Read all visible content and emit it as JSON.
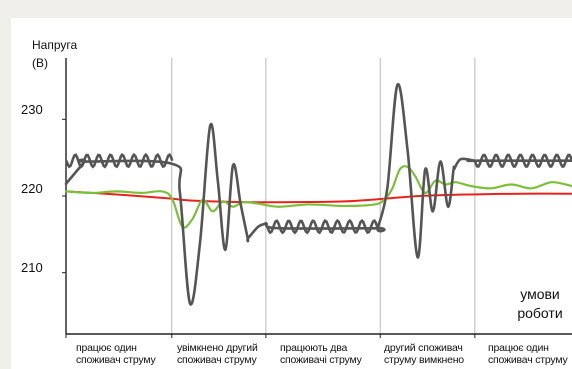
{
  "chart_data": {
    "type": "line",
    "ylabel": "Напруга",
    "yunit": "(В)",
    "ylim": [
      202,
      238
    ],
    "xlim": [
      0,
      100
    ],
    "y_ticks": [
      "230",
      "220",
      "210"
    ],
    "y_tick_values": [
      230,
      220,
      210
    ],
    "phases": [
      {
        "line1": "працює один",
        "line2": "споживач струму",
        "x_start": 0,
        "x_end": 20.9
      },
      {
        "line1": "увімкнено другий",
        "line2": "споживач струму",
        "x_start": 20.9,
        "x_end": 39.5
      },
      {
        "line1": "працюють два",
        "line2": "споживачі струму",
        "x_start": 39.5,
        "x_end": 62.1
      },
      {
        "line1": "другий споживач",
        "line2": "струму вимкнено",
        "x_start": 62.1,
        "x_end": 80.8
      },
      {
        "line1": "працює один",
        "line2": "споживач струму",
        "x_start": 80.8,
        "x_end": 100
      }
    ],
    "annotation": {
      "line1": "умови",
      "line2": "роботи"
    },
    "series": [
      {
        "color": "#e8231c",
        "x": [
          0,
          10,
          20,
          25,
          35,
          45,
          55,
          62,
          70,
          80,
          90,
          100
        ],
        "values": [
          220.6,
          220.2,
          219.7,
          219.4,
          219.2,
          219.2,
          219.3,
          219.6,
          220.0,
          220.2,
          220.3,
          220.3
        ]
      },
      {
        "color": "#7cbf3a",
        "x": [
          0,
          5,
          10,
          15,
          19,
          21,
          23,
          25,
          27,
          29,
          31,
          33,
          35,
          38,
          42,
          48,
          55,
          61,
          63,
          64.5,
          66,
          67.5,
          69,
          71,
          73,
          75,
          77,
          80,
          84,
          88,
          92,
          96,
          100
        ],
        "values": [
          220.6,
          220.4,
          220.6,
          220.4,
          220.6,
          219.6,
          216.0,
          217.0,
          219.5,
          218.0,
          219.3,
          218.6,
          219.2,
          219.0,
          218.6,
          218.9,
          218.7,
          218.9,
          219.6,
          221.0,
          223.5,
          223.8,
          222.6,
          220.4,
          222.0,
          221.5,
          221.8,
          221.3,
          221.0,
          221.5,
          221.0,
          221.8,
          221.3
        ]
      },
      {
        "color": "#555555",
        "x": [
          0,
          3.7,
          3.71,
          21,
          22.5,
          24.5,
          26.5,
          28.5,
          30,
          31.5,
          33,
          34.5,
          35.9,
          36,
          38,
          39.5,
          39.6,
          42,
          61.5,
          61.6,
          63.5,
          65.5,
          67.5,
          69.5,
          71,
          72.5,
          74,
          75.5,
          76.6,
          76.7,
          78,
          80.7,
          80.71,
          100
        ],
        "values": [
          221.6,
          224.5,
          224.5,
          224.2,
          220.5,
          206.0,
          214.0,
          229.2,
          222.0,
          213.0,
          224.0,
          219.0,
          214.5,
          214.5,
          216.0,
          216.4,
          216.4,
          215.8,
          215.8,
          215.8,
          221.0,
          234.5,
          226.0,
          212.0,
          223.5,
          218.0,
          224.5,
          218.6,
          223.5,
          223.5,
          224.8,
          224.6,
          224.6,
          224.6
        ]
      }
    ]
  }
}
